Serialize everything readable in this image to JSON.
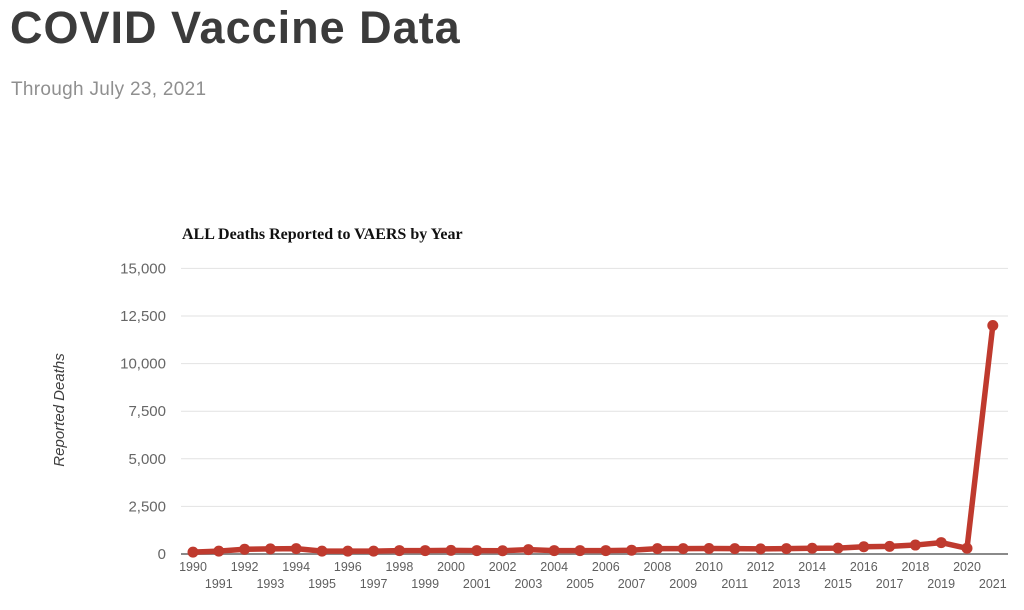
{
  "header": {
    "title": "COVID Vaccine Data",
    "subtitle": "Through July 23, 2021"
  },
  "chart_data": {
    "type": "line",
    "title": "ALL Deaths Reported to VAERS by Year",
    "xlabel": "",
    "ylabel": "Reported Deaths",
    "x": [
      1990,
      1991,
      1992,
      1993,
      1994,
      1995,
      1996,
      1997,
      1998,
      1999,
      2000,
      2001,
      2002,
      2003,
      2004,
      2005,
      2006,
      2007,
      2008,
      2009,
      2010,
      2011,
      2012,
      2013,
      2014,
      2015,
      2016,
      2017,
      2018,
      2019,
      2020,
      2021
    ],
    "values": [
      100,
      150,
      250,
      270,
      280,
      150,
      150,
      150,
      180,
      180,
      190,
      180,
      170,
      230,
      180,
      180,
      180,
      200,
      280,
      280,
      290,
      280,
      270,
      280,
      300,
      310,
      380,
      400,
      470,
      600,
      300,
      12000
    ],
    "ylim": [
      0,
      15000
    ],
    "y_ticks": [
      {
        "value": 0,
        "label": "0"
      },
      {
        "value": 2500,
        "label": "2,500"
      },
      {
        "value": 5000,
        "label": "5,000"
      },
      {
        "value": 7500,
        "label": "7,500"
      },
      {
        "value": 10000,
        "label": "10,000"
      },
      {
        "value": 12500,
        "label": "12,500"
      },
      {
        "value": 15000,
        "label": "15,000"
      }
    ],
    "grid": "horizontal",
    "legend": "none",
    "colors": {
      "series_line": "#bf3a2e",
      "gridline": "#e2e2e2",
      "axis_line": "#8a8a8a",
      "tick_text": "#666666",
      "title_text": "#111111"
    }
  }
}
